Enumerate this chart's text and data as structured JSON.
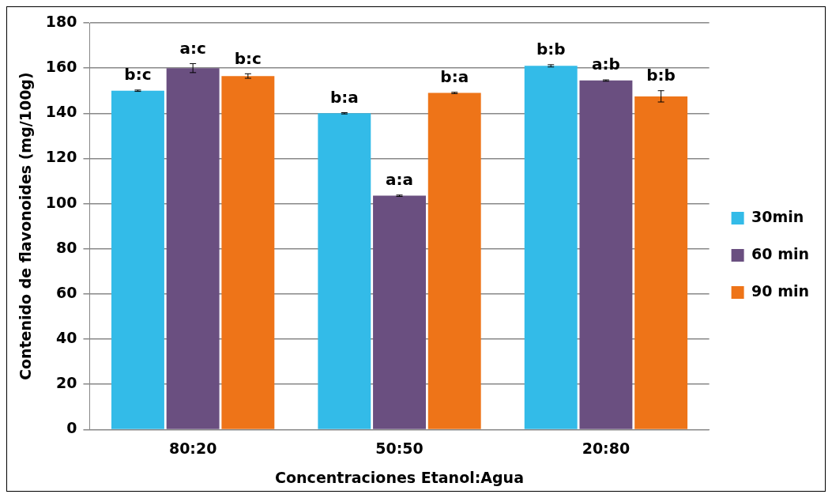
{
  "chart_data": {
    "type": "bar",
    "xlabel": "Concentraciones Etanol:Agua",
    "ylabel": "Contenido de flavonoides (mg/100g)",
    "categories": [
      "80:20",
      "50:50",
      "20:80"
    ],
    "series": [
      {
        "name": "30min",
        "color": "#33bbe8",
        "values": [
          150,
          140,
          161
        ],
        "errors": [
          0.3,
          0.3,
          0.5
        ]
      },
      {
        "name": "60 min",
        "color": "#6a4f80",
        "values": [
          160,
          103.5,
          154.5
        ],
        "errors": [
          2,
          0.3,
          0.3
        ]
      },
      {
        "name": "90 min",
        "color": "#ee7418",
        "values": [
          156.5,
          149,
          147.5
        ],
        "errors": [
          1,
          0.3,
          2.5
        ]
      }
    ],
    "ylim": [
      0,
      180
    ],
    "yticks": [
      0,
      20,
      40,
      60,
      80,
      100,
      120,
      140,
      160,
      180
    ],
    "grid": "y",
    "legend": "right",
    "annotations": [
      "b:c",
      "a:c",
      "b:c",
      "b:a",
      "a:a",
      "b:a",
      "b:b",
      "a:b",
      "b:b"
    ]
  }
}
